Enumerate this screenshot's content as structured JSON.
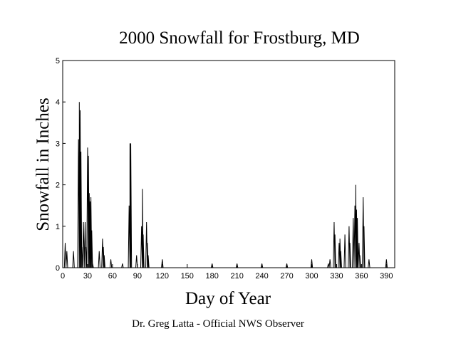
{
  "chart_data": {
    "type": "line",
    "title": "2000 Snowfall for Frostburg, MD",
    "xlabel": "Day of Year",
    "ylabel": "Snowfall in Inches",
    "credit": "Dr. Greg Latta - Official NWS Observer",
    "xlim": [
      0,
      400
    ],
    "ylim": [
      0,
      5
    ],
    "xticks": [
      0,
      30,
      60,
      90,
      120,
      150,
      180,
      210,
      240,
      270,
      300,
      330,
      360,
      390
    ],
    "yticks": [
      0,
      1,
      2,
      3,
      4,
      5
    ],
    "grid": false,
    "line_color": "#000000",
    "series": [
      {
        "x": [
          3,
          5,
          13,
          19,
          20,
          21,
          22,
          23,
          25,
          27,
          28,
          30,
          31,
          32,
          33,
          34,
          35,
          36,
          44,
          48,
          49,
          50,
          58,
          72,
          80,
          81,
          82,
          89,
          95,
          96,
          97,
          101,
          102,
          103,
          120,
          180,
          210,
          240,
          270,
          300,
          320,
          322,
          327,
          328,
          333,
          334,
          335,
          340,
          345,
          346,
          350,
          352,
          353,
          354,
          355,
          357,
          358,
          362,
          363,
          369,
          390
        ],
        "y": [
          0.6,
          0.4,
          0.4,
          3.1,
          4.0,
          3.8,
          2.8,
          0.5,
          1.1,
          1.1,
          0.5,
          2.9,
          2.7,
          1.8,
          1.6,
          1.7,
          0.9,
          0.1,
          0.4,
          0.7,
          0.5,
          0.3,
          0.2,
          0.1,
          1.5,
          3.0,
          3.0,
          0.3,
          1.0,
          1.9,
          0.8,
          1.1,
          0.6,
          0.3,
          0.2,
          0.1,
          0.1,
          0.1,
          0.1,
          0.2,
          0.1,
          0.2,
          1.1,
          0.8,
          0.6,
          0.7,
          0.4,
          0.8,
          1.0,
          0.6,
          1.2,
          1.5,
          2.0,
          1.4,
          1.2,
          0.6,
          0.3,
          1.7,
          1.0,
          0.2,
          0.2
        ]
      }
    ]
  }
}
